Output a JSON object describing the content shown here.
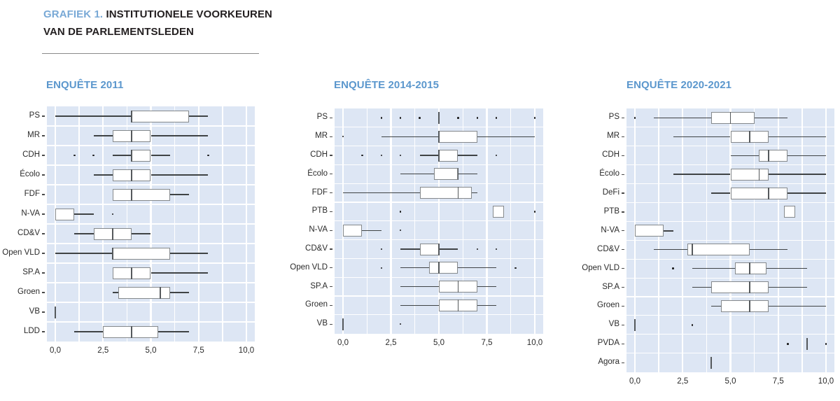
{
  "header": {
    "prefix": "GRAFIEK 1.",
    "title": "INSTITUTIONELE VOORKEUREN",
    "title_line2": "VAN DE PARLEMENTSLEDEN"
  },
  "colors": {
    "accent_blue": "#5b97cd",
    "header_blue": "#79a9d6",
    "plot_background": "#dde6f4",
    "gridline": "#ffffff",
    "box_border": "#85898c",
    "whisker": "#3f4345",
    "outlier": "#1c1c1c",
    "text": "#231f20"
  },
  "axis": {
    "tick_labels": [
      "0,0",
      "2,5",
      "5,0",
      "7,5",
      "10,0"
    ],
    "tick_values": [
      0,
      2.5,
      5,
      7.5,
      10
    ],
    "xlim": [
      0,
      10
    ]
  },
  "chart_data": [
    {
      "type": "boxplot",
      "orientation": "horizontal",
      "title": "ENQUÊTE 2011",
      "xlim": [
        0,
        10
      ],
      "grid": "on",
      "categories": [
        "PS",
        "MR",
        "CDH",
        "Écolo",
        "FDF",
        "N-VA",
        "CD&V",
        "Open VLD",
        "SP.A",
        "Groen",
        "VB",
        "LDD"
      ],
      "boxes": [
        {
          "party": "PS",
          "low": 0,
          "q1": 4,
          "median": 4,
          "q3": 7,
          "high": 8,
          "outliers": []
        },
        {
          "party": "MR",
          "low": 2,
          "q1": 3,
          "median": 4,
          "q3": 5,
          "high": 8,
          "outliers": []
        },
        {
          "party": "CDH",
          "low": 3,
          "q1": 4,
          "median": 4,
          "q3": 5,
          "high": 6,
          "outliers": [
            1,
            2,
            8
          ]
        },
        {
          "party": "Écolo",
          "low": 2,
          "q1": 3,
          "median": 4,
          "q3": 5,
          "high": 8,
          "outliers": []
        },
        {
          "party": "FDF",
          "low": 3,
          "q1": 3,
          "median": 4,
          "q3": 6,
          "high": 7,
          "outliers": []
        },
        {
          "party": "N-VA",
          "low": 0,
          "q1": 0,
          "median": null,
          "q3": 1,
          "high": 2,
          "outliers": [
            3
          ]
        },
        {
          "party": "CD&V",
          "low": 1,
          "q1": 2,
          "median": 3,
          "q3": 4,
          "high": 5,
          "outliers": []
        },
        {
          "party": "Open VLD",
          "low": 0,
          "q1": 3,
          "median": 3,
          "q3": 6,
          "high": 8,
          "outliers": []
        },
        {
          "party": "SP.A",
          "low": 3,
          "q1": 3,
          "median": 4,
          "q3": 5,
          "high": 8,
          "outliers": []
        },
        {
          "party": "Groen",
          "low": 3,
          "q1": 3.3,
          "median": 5.5,
          "q3": 6,
          "high": 7,
          "outliers": []
        },
        {
          "party": "VB",
          "line": 0,
          "outliers": []
        },
        {
          "party": "LDD",
          "low": 1,
          "q1": 2.5,
          "median": 4,
          "q3": 5.4,
          "high": 7,
          "outliers": []
        }
      ]
    },
    {
      "type": "boxplot",
      "orientation": "horizontal",
      "title": "ENQUÊTE 2014-2015",
      "xlim": [
        0,
        10
      ],
      "grid": "on",
      "categories": [
        "PS",
        "MR",
        "CDH",
        "Écolo",
        "FDF",
        "PTB",
        "N-VA",
        "CD&V",
        "Open VLD",
        "SP.A",
        "Groen",
        "VB"
      ],
      "boxes": [
        {
          "party": "PS",
          "line": 5,
          "outliers": [
            2,
            3,
            4,
            6,
            7,
            8,
            10
          ]
        },
        {
          "party": "MR",
          "low": 2,
          "q1": 5,
          "median": 5,
          "q3": 7,
          "high": 10,
          "outliers": [
            0
          ]
        },
        {
          "party": "CDH",
          "low": 4,
          "q1": 5,
          "median": 5,
          "q3": 6,
          "high": 7,
          "outliers": [
            1,
            2,
            3,
            8
          ]
        },
        {
          "party": "Écolo",
          "low": 3,
          "q1": 4.75,
          "median": 6,
          "q3": 6,
          "high": 7,
          "outliers": []
        },
        {
          "party": "FDF",
          "low": 0,
          "q1": 4,
          "median": 6,
          "q3": 6.7,
          "high": 7,
          "outliers": []
        },
        {
          "party": "PTB",
          "low": null,
          "q1": 7.8,
          "median": null,
          "q3": 8.4,
          "high": null,
          "outliers": [
            3,
            10
          ]
        },
        {
          "party": "N-VA",
          "low": 0,
          "q1": 0,
          "median": null,
          "q3": 1,
          "high": 2,
          "outliers": [
            3
          ]
        },
        {
          "party": "CD&V",
          "low": 3,
          "q1": 4,
          "median": 5,
          "q3": 5,
          "high": 6,
          "outliers": [
            2,
            7,
            8
          ]
        },
        {
          "party": "Open VLD",
          "low": 3,
          "q1": 4.5,
          "median": 5,
          "q3": 6,
          "high": 8,
          "outliers": [
            2,
            9
          ]
        },
        {
          "party": "SP.A",
          "low": 3,
          "q1": 5,
          "median": 6,
          "q3": 7,
          "high": 8,
          "outliers": []
        },
        {
          "party": "Groen",
          "low": 3,
          "q1": 5,
          "median": 6,
          "q3": 7,
          "high": 8,
          "outliers": []
        },
        {
          "party": "VB",
          "line": 0,
          "outliers": [
            3
          ]
        }
      ]
    },
    {
      "type": "boxplot",
      "orientation": "horizontal",
      "title": "ENQUÊTE 2020-2021",
      "xlim": [
        0,
        10
      ],
      "grid": "on",
      "categories": [
        "PS",
        "MR",
        "CDH",
        "Écolo",
        "DeFi",
        "PTB",
        "N-VA",
        "CD&V",
        "Open VLD",
        "SP.A",
        "Groen",
        "VB",
        "PVDA",
        "Agora"
      ],
      "boxes": [
        {
          "party": "PS",
          "low": 1,
          "q1": 4,
          "median": 5,
          "q3": 6.25,
          "high": 8,
          "outliers": [
            0
          ]
        },
        {
          "party": "MR",
          "low": 2,
          "q1": 5,
          "median": 6,
          "q3": 7,
          "high": 10,
          "outliers": []
        },
        {
          "party": "CDH",
          "low": 5,
          "q1": 6.5,
          "median": 7,
          "q3": 8,
          "high": 10,
          "outliers": []
        },
        {
          "party": "Écolo",
          "low": 2,
          "q1": 5,
          "median": 6.5,
          "q3": 7,
          "high": 10,
          "outliers": []
        },
        {
          "party": "DeFi",
          "low": 4,
          "q1": 5,
          "median": 7,
          "q3": 8,
          "high": 10,
          "outliers": []
        },
        {
          "party": "PTB",
          "low": null,
          "q1": 7.8,
          "median": null,
          "q3": 8.4,
          "high": null,
          "outliers": []
        },
        {
          "party": "N-VA",
          "low": 0,
          "q1": 0,
          "median": null,
          "q3": 1.5,
          "high": 2,
          "outliers": []
        },
        {
          "party": "CD&V",
          "low": 1,
          "q1": 2.75,
          "median": 3,
          "q3": 6,
          "high": 8,
          "outliers": []
        },
        {
          "party": "Open VLD",
          "low": 3,
          "q1": 5.25,
          "median": 6,
          "q3": 6.9,
          "high": 9,
          "outliers": [
            2
          ]
        },
        {
          "party": "SP.A",
          "low": 3,
          "q1": 4,
          "median": 6,
          "q3": 7,
          "high": 9,
          "outliers": []
        },
        {
          "party": "Groen",
          "low": 4,
          "q1": 4.5,
          "median": 6,
          "q3": 7,
          "high": 10,
          "outliers": []
        },
        {
          "party": "VB",
          "line": 0,
          "outliers": [
            3
          ]
        },
        {
          "party": "PVDA",
          "line": 9,
          "outliers": [
            8,
            10
          ]
        },
        {
          "party": "Agora",
          "line": 4,
          "outliers": []
        }
      ]
    }
  ]
}
